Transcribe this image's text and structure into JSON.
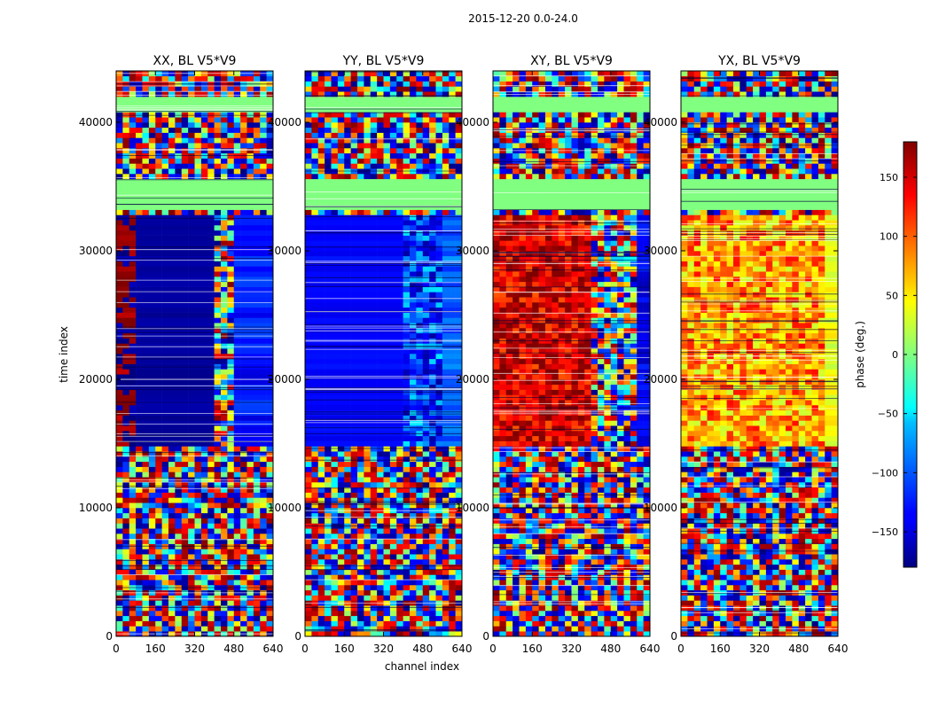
{
  "figure": {
    "suptitle": "2015-12-20 0.0-24.0"
  },
  "chart_data": {
    "type": "heatmap",
    "panels": [
      {
        "title": "XX, BL V5*V9"
      },
      {
        "title": "YY, BL V5*V9"
      },
      {
        "title": "XY, BL V5*V9"
      },
      {
        "title": "YX, BL V5*V9"
      }
    ],
    "xlabel": "channel index",
    "ylabel": "time index",
    "xlim": [
      0,
      640
    ],
    "ylim": [
      0,
      44000
    ],
    "xticks": [
      0,
      160,
      320,
      480,
      640
    ],
    "yticks": [
      0,
      10000,
      20000,
      30000,
      40000
    ],
    "colorbar": {
      "label": "phase (deg.)",
      "range": [
        -180,
        180
      ],
      "ticks": [
        -150,
        -100,
        -50,
        0,
        50,
        100,
        150
      ],
      "colormap": "jet"
    }
  }
}
